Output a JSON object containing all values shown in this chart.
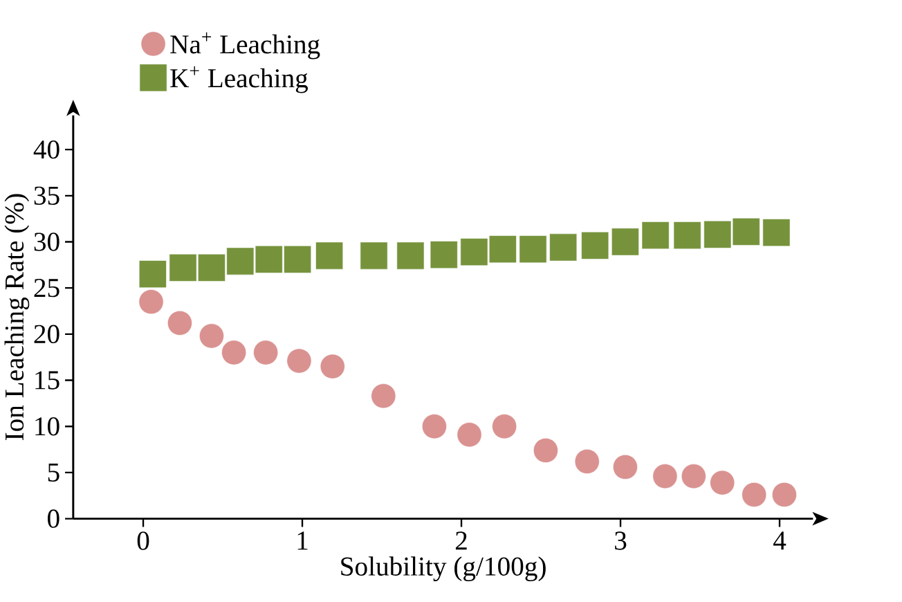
{
  "chart_data": {
    "type": "scatter",
    "xlabel": "Solubility (g/100g)",
    "ylabel": "Ion Leaching Rate (%)",
    "xlim": [
      -0.44,
      4.21
    ],
    "ylim": [
      0,
      43.7
    ],
    "xticks": [
      0,
      1,
      2,
      3,
      4
    ],
    "yticks": [
      0,
      5,
      10,
      15,
      20,
      25,
      30,
      35,
      40
    ],
    "grid": false,
    "legend": "top left",
    "series": [
      {
        "name": "Na$^{+}$ Leaching",
        "color": "#d99290",
        "marker": "circle",
        "x": [
          0.05,
          0.23,
          0.43,
          0.57,
          0.77,
          0.98,
          1.19,
          1.51,
          1.83,
          2.05,
          2.27,
          2.53,
          2.79,
          3.03,
          3.28,
          3.46,
          3.64,
          3.84,
          4.03
        ],
        "values": [
          23.5,
          21.2,
          19.8,
          18,
          18,
          17.1,
          16.5,
          13.3,
          10,
          9.1,
          10,
          7.4,
          6.2,
          5.6,
          4.6,
          4.6,
          3.9,
          2.6,
          2.6
        ]
      },
      {
        "name": "K$^{+}$ Leaching",
        "color": "#76933c",
        "marker": "square",
        "x": [
          0.06,
          0.25,
          0.43,
          0.61,
          0.79,
          0.97,
          1.17,
          1.45,
          1.68,
          1.89,
          2.08,
          2.26,
          2.45,
          2.64,
          2.84,
          3.03,
          3.22,
          3.42,
          3.61,
          3.79,
          3.98
        ],
        "values": [
          26.5,
          27.2,
          27.2,
          27.9,
          28.1,
          28.1,
          28.5,
          28.5,
          28.5,
          28.6,
          28.9,
          29.2,
          29.2,
          29.4,
          29.6,
          30.0,
          30.7,
          30.7,
          30.8,
          31.1,
          31.0
        ]
      }
    ]
  }
}
